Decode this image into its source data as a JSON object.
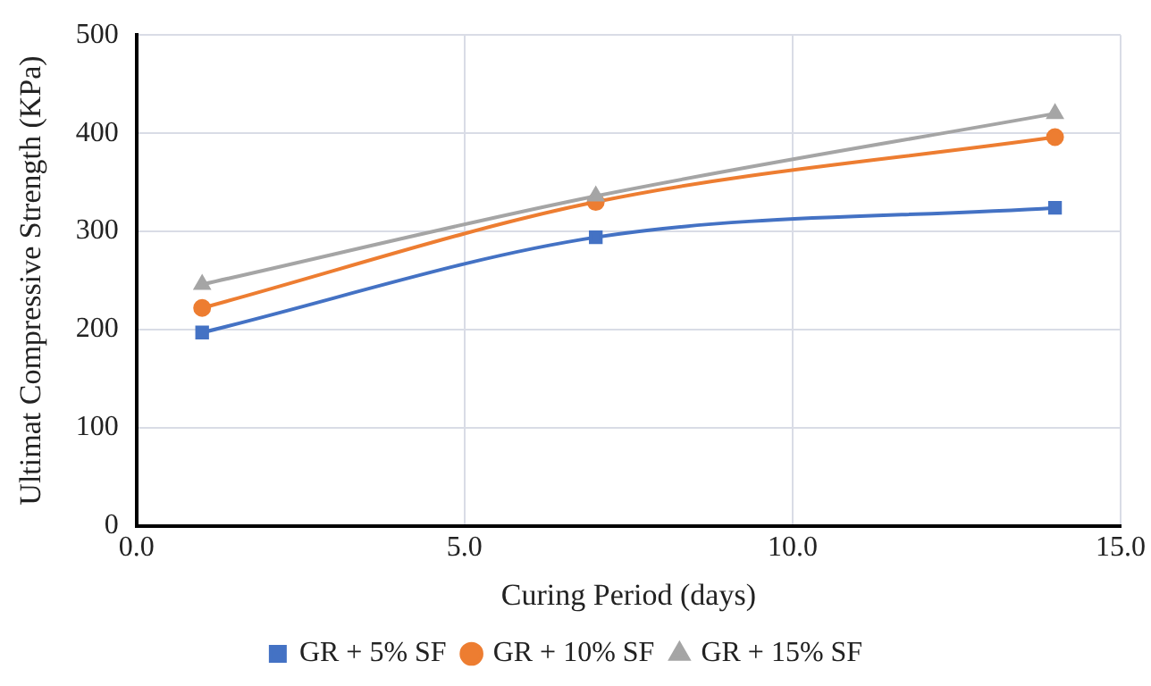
{
  "chart_data": {
    "type": "line",
    "xlabel": "Curing Period (days)",
    "ylabel": "Ultimat Compressive Strength (KPa)",
    "xlim": [
      0,
      15
    ],
    "xticks": [
      {
        "value": 0,
        "label": "0.0"
      },
      {
        "value": 5,
        "label": "5.0"
      },
      {
        "value": 10,
        "label": "10.0"
      },
      {
        "value": 15,
        "label": "15.0"
      }
    ],
    "ylim": [
      0,
      500
    ],
    "yticks": [
      0,
      100,
      200,
      300,
      400,
      500
    ],
    "grid": true,
    "legend": "bottom",
    "line_style": "solid",
    "x": [
      1,
      7,
      14
    ],
    "series": [
      {
        "name": "GR + 5% SF",
        "color": "#4472c4",
        "marker": "square",
        "values": [
          197,
          294,
          324
        ]
      },
      {
        "name": "GR + 10% SF",
        "color": "#ed7d31",
        "marker": "circle",
        "values": [
          222,
          330,
          396
        ]
      },
      {
        "name": "GR + 15% SF",
        "color": "#a5a5a5",
        "marker": "triangle",
        "values": [
          246,
          336,
          420
        ]
      }
    ]
  }
}
